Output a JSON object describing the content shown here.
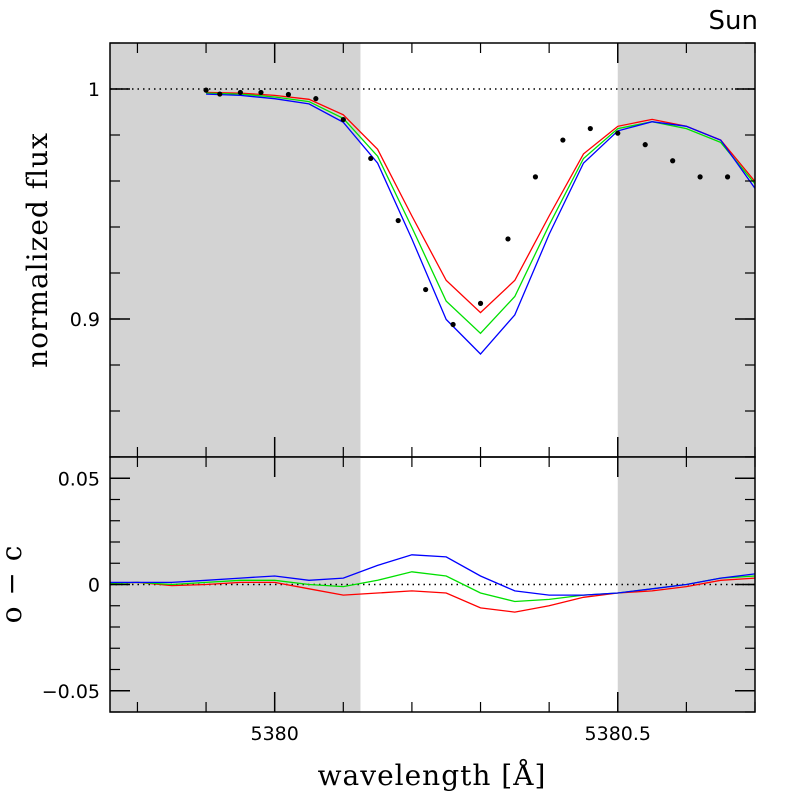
{
  "chart_data": {
    "type": "line",
    "annotation": "Sun",
    "xlabel": "wavelength [Å]",
    "xlim": [
      5379.76,
      5380.7
    ],
    "xticks": [
      5380,
      5380.5
    ],
    "xtick_labels": [
      "5380",
      "5380.5"
    ],
    "shaded_regions": [
      [
        5379.76,
        5380.125
      ],
      [
        5380.5,
        5380.7
      ]
    ],
    "colors": {
      "red": "#ff0000",
      "green": "#00e000",
      "blue": "#0000ff",
      "points": "#000000",
      "shade": "#d3d3d3"
    },
    "top_panel": {
      "ylabel": "normalized flux",
      "ylim": [
        0.84,
        1.02
      ],
      "yticks": [
        0.9,
        1.0
      ],
      "ytick_labels": [
        "0.9",
        "1"
      ],
      "reference_line": 1.0,
      "observed": {
        "x": [
          5379.9,
          5379.92,
          5379.95,
          5379.98,
          5380.02,
          5380.06,
          5380.1,
          5380.14,
          5380.18,
          5380.22,
          5380.26,
          5380.3,
          5380.34,
          5380.38,
          5380.42,
          5380.46,
          5380.5,
          5380.54,
          5380.58,
          5380.62,
          5380.66
        ],
        "y": [
          0.9995,
          0.9978,
          0.9985,
          0.9985,
          0.9976,
          0.9958,
          0.9867,
          0.9698,
          0.9428,
          0.9128,
          0.8976,
          0.9068,
          0.9348,
          0.9618,
          0.9778,
          0.9828,
          0.9808,
          0.9758,
          0.9688,
          0.9618,
          0.9618
        ]
      },
      "series": [
        {
          "color": "red",
          "x": [
            5379.9,
            5379.95,
            5380.0,
            5380.05,
            5380.1,
            5380.15,
            5380.2,
            5380.25,
            5380.3,
            5380.35,
            5380.4,
            5380.45,
            5380.5,
            5380.55,
            5380.6,
            5380.65,
            5380.7
          ],
          "y": [
            0.9985,
            0.9982,
            0.9972,
            0.9955,
            0.9888,
            0.9738,
            0.9448,
            0.9168,
            0.9028,
            0.9168,
            0.9448,
            0.9718,
            0.9838,
            0.9868,
            0.9838,
            0.9778,
            0.9598
          ]
        },
        {
          "color": "green",
          "x": [
            5379.9,
            5379.95,
            5380.0,
            5380.05,
            5380.1,
            5380.15,
            5380.2,
            5380.25,
            5380.3,
            5380.35,
            5380.4,
            5380.45,
            5380.5,
            5380.55,
            5380.6,
            5380.65,
            5380.7
          ],
          "y": [
            0.9982,
            0.9978,
            0.9965,
            0.9945,
            0.9872,
            0.9708,
            0.9398,
            0.9078,
            0.8938,
            0.9098,
            0.9408,
            0.9698,
            0.9828,
            0.9858,
            0.9828,
            0.9768,
            0.9588
          ]
        },
        {
          "color": "blue",
          "x": [
            5379.9,
            5379.95,
            5380.0,
            5380.05,
            5380.1,
            5380.15,
            5380.2,
            5380.25,
            5380.3,
            5380.35,
            5380.4,
            5380.45,
            5380.5,
            5380.55,
            5380.6,
            5380.65,
            5380.7
          ],
          "y": [
            0.9978,
            0.9972,
            0.9958,
            0.9935,
            0.9855,
            0.9678,
            0.9348,
            0.8998,
            0.8848,
            0.9018,
            0.9368,
            0.9678,
            0.9818,
            0.9858,
            0.9838,
            0.9778,
            0.9568
          ]
        }
      ]
    },
    "bottom_panel": {
      "ylabel": "o − c",
      "ylim": [
        -0.06,
        0.06
      ],
      "yticks": [
        -0.05,
        0,
        0.05
      ],
      "ytick_labels": [
        "−0.05",
        "0",
        "0.05"
      ],
      "reference_line": 0,
      "series": [
        {
          "color": "red",
          "x": [
            5379.76,
            5379.8,
            5379.85,
            5379.9,
            5379.95,
            5380.0,
            5380.05,
            5380.1,
            5380.15,
            5380.2,
            5380.25,
            5380.3,
            5380.35,
            5380.4,
            5380.45,
            5380.5,
            5380.55,
            5380.6,
            5380.65,
            5380.7
          ],
          "y": [
            0.0005,
            0.001,
            -0.0005,
            0.0,
            0.001,
            0.001,
            -0.002,
            -0.005,
            -0.004,
            -0.003,
            -0.004,
            -0.011,
            -0.013,
            -0.01,
            -0.006,
            -0.004,
            -0.003,
            -0.001,
            0.002,
            0.003
          ]
        },
        {
          "color": "green",
          "x": [
            5379.76,
            5379.8,
            5379.85,
            5379.9,
            5379.95,
            5380.0,
            5380.05,
            5380.1,
            5380.15,
            5380.2,
            5380.25,
            5380.3,
            5380.35,
            5380.4,
            5380.45,
            5380.5,
            5380.55,
            5380.6,
            5380.65,
            5380.7
          ],
          "y": [
            0.0005,
            0.001,
            0.0,
            0.001,
            0.002,
            0.002,
            0.0,
            -0.001,
            0.002,
            0.006,
            0.004,
            -0.004,
            -0.008,
            -0.007,
            -0.005,
            -0.004,
            -0.002,
            0.0,
            0.003,
            0.004
          ]
        },
        {
          "color": "blue",
          "x": [
            5379.76,
            5379.8,
            5379.85,
            5379.9,
            5379.95,
            5380.0,
            5380.05,
            5380.1,
            5380.15,
            5380.2,
            5380.25,
            5380.3,
            5380.35,
            5380.4,
            5380.45,
            5380.5,
            5380.55,
            5380.6,
            5380.65,
            5380.7
          ],
          "y": [
            0.001,
            0.001,
            0.001,
            0.002,
            0.003,
            0.004,
            0.002,
            0.003,
            0.009,
            0.014,
            0.013,
            0.004,
            -0.003,
            -0.005,
            -0.005,
            -0.004,
            -0.002,
            0.0,
            0.003,
            0.005
          ]
        }
      ]
    }
  }
}
